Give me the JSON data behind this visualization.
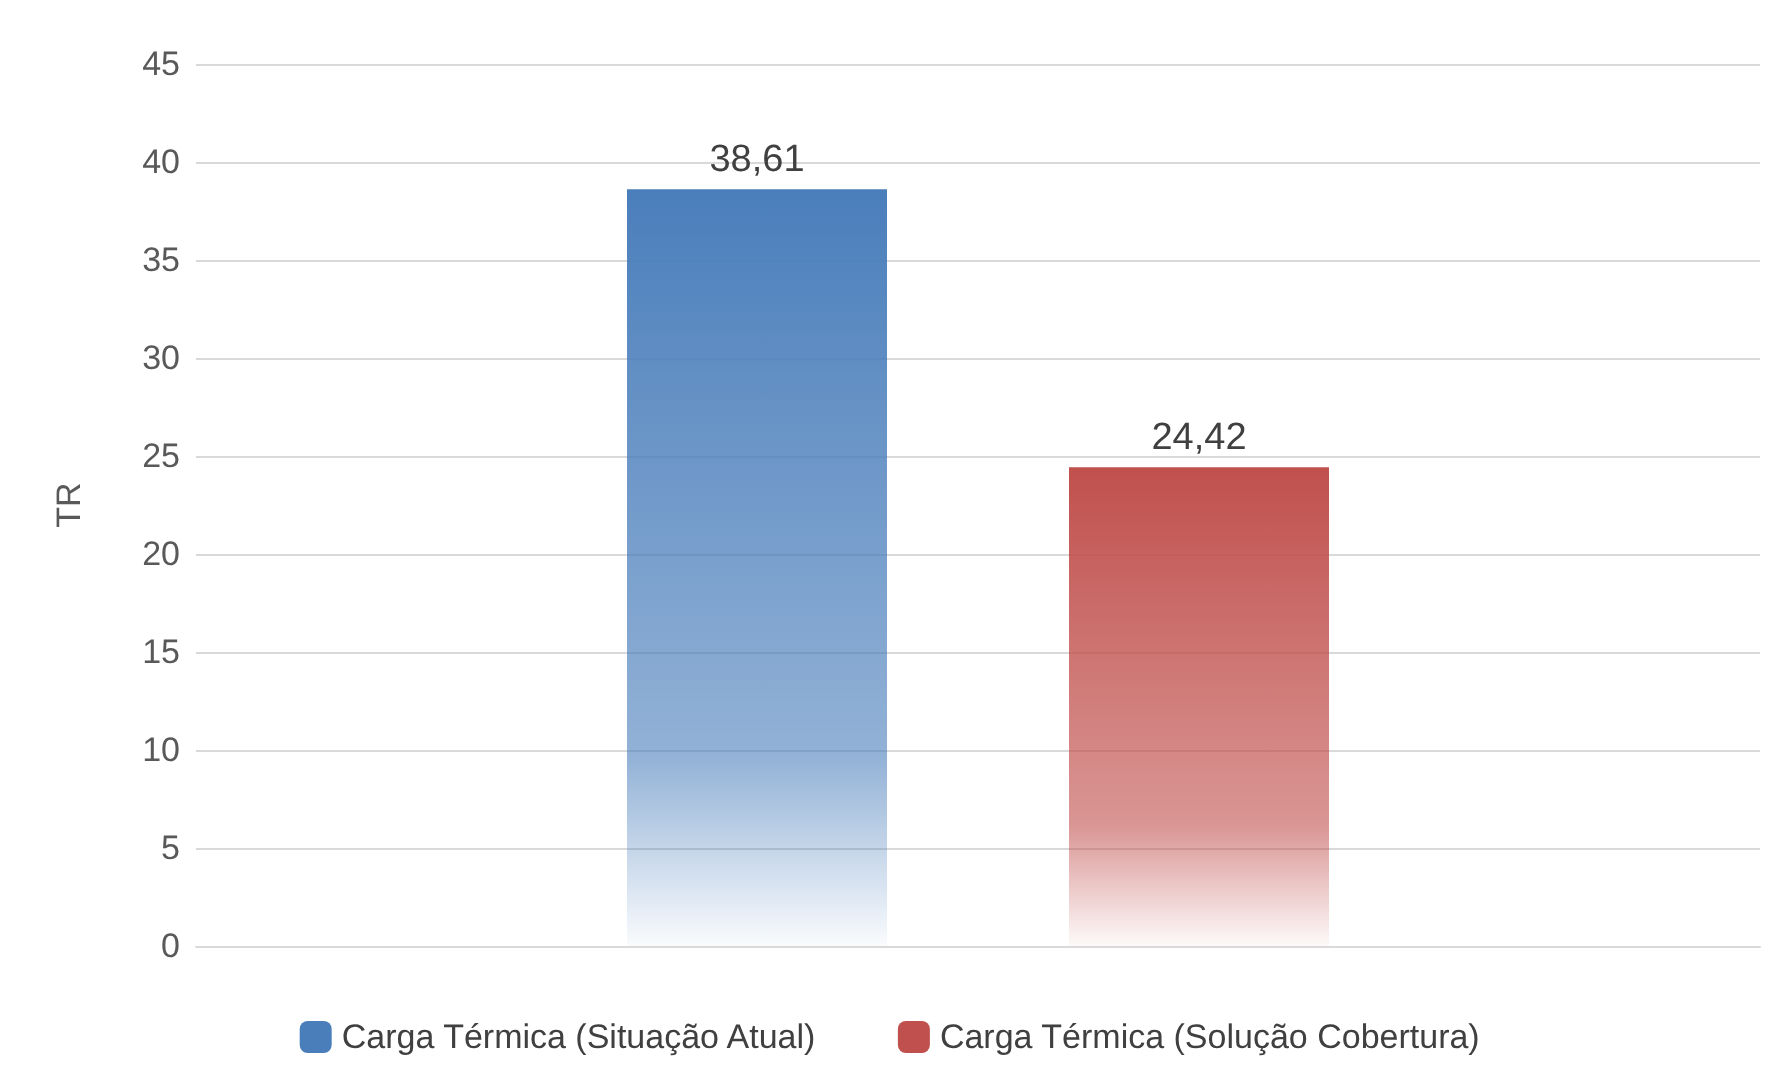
{
  "chart_data": {
    "type": "bar",
    "ylabel": "TR",
    "categories": [
      null
    ],
    "series": [
      {
        "name": "Carga Térmica (Situação Atual)",
        "color": "#4a7ebb",
        "values": [
          38.61
        ],
        "value_labels": [
          "38,61"
        ]
      },
      {
        "name": "Carga Térmica (Solução Cobertura)",
        "color": "#c0504d",
        "values": [
          24.42
        ],
        "value_labels": [
          "24,42"
        ]
      }
    ],
    "ylim": [
      0,
      45
    ],
    "yticks": [
      0,
      5,
      10,
      15,
      20,
      25,
      30,
      35,
      40,
      45
    ],
    "grid": "y",
    "legend": "bottom"
  }
}
